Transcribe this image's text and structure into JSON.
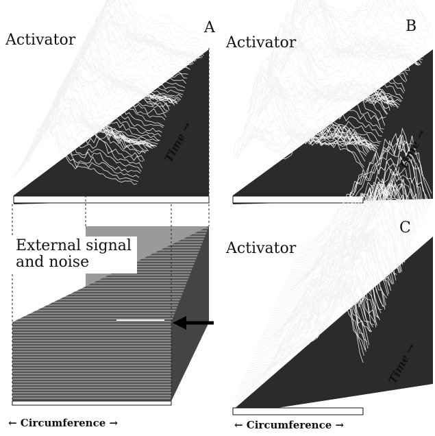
{
  "panels": [
    {
      "letter": "A",
      "label": "Activator",
      "time_label": "Time →"
    },
    {
      "letter": "B",
      "label": "Activator",
      "time_label": "Time →"
    },
    {
      "letter": "C",
      "label": "Activator",
      "time_label": "Time →"
    }
  ],
  "external": {
    "line1": "External signal",
    "line2": "and noise"
  },
  "circumference_label": "← Circumference →",
  "colors": {
    "ink": "#111111",
    "background": "#ffffff"
  }
}
